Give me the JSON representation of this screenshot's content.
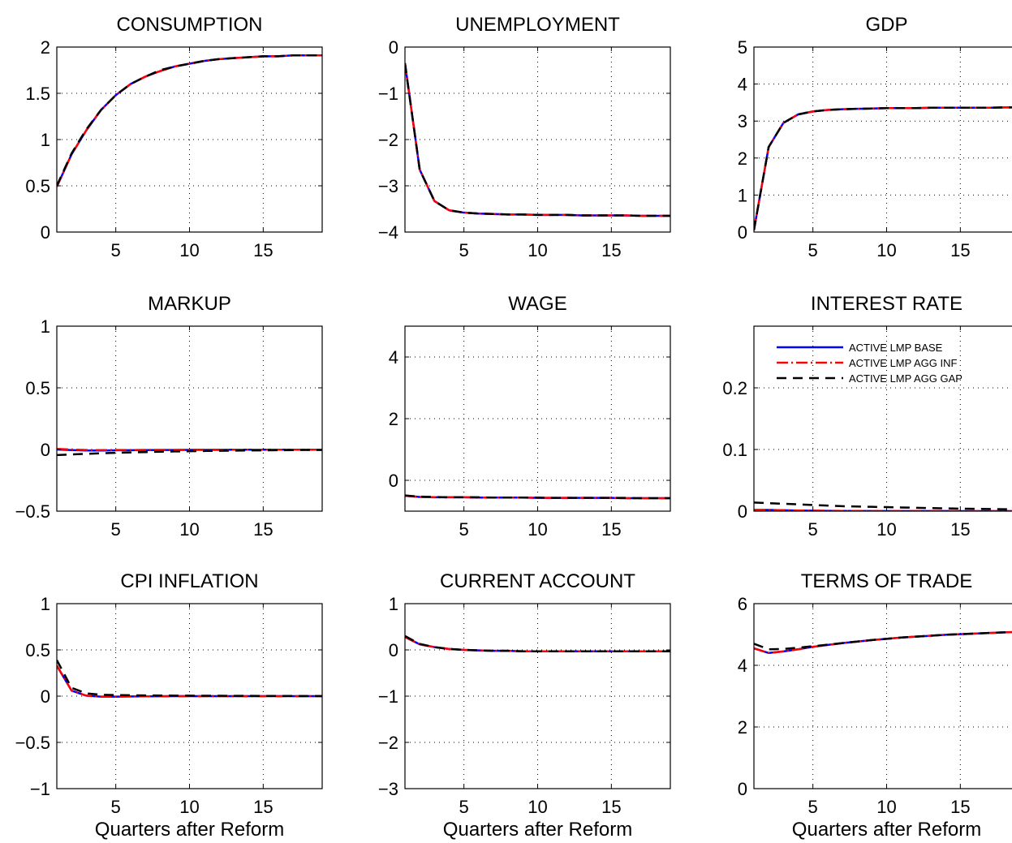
{
  "legend": {
    "entries": [
      {
        "label": "ACTIVE LMP BASE",
        "color": "#0000ff",
        "dash": "solid"
      },
      {
        "label": "ACTIVE LMP AGG INF",
        "color": "#ff0000",
        "dash": "dashdot"
      },
      {
        "label": "ACTIVE LMP AGG GAP",
        "color": "#000000",
        "dash": "dashed"
      }
    ],
    "placement": "top-left of INTEREST RATE panel"
  },
  "colors": {
    "base": "#0000ff",
    "agg_inf": "#ff0000",
    "agg_gap": "#000000",
    "grid": "#000000"
  },
  "chart_data": [
    {
      "type": "line",
      "title": "CONSUMPTION",
      "xlabel": "",
      "ylabel": "",
      "xlim": [
        1,
        19
      ],
      "ylim": [
        0,
        2
      ],
      "xticks": [
        5,
        10,
        15
      ],
      "xtick_labels": [
        "5",
        "10",
        "15"
      ],
      "yticks": [
        0,
        0.5,
        1,
        1.5,
        2
      ],
      "ytick_labels": [
        "0",
        "0.5",
        "1",
        "1.5",
        "2"
      ],
      "grid": true,
      "x": [
        1,
        2,
        3,
        4,
        5,
        6,
        7,
        8,
        9,
        10,
        11,
        12,
        13,
        14,
        15,
        16,
        17,
        18,
        19
      ],
      "series": [
        {
          "name": "ACTIVE LMP BASE",
          "values": [
            0.49,
            0.84,
            1.1,
            1.32,
            1.48,
            1.6,
            1.68,
            1.74,
            1.79,
            1.82,
            1.85,
            1.87,
            1.88,
            1.89,
            1.9,
            1.9,
            1.91,
            1.91,
            1.91
          ]
        },
        {
          "name": "ACTIVE LMP AGG INF",
          "values": [
            0.49,
            0.84,
            1.1,
            1.32,
            1.48,
            1.6,
            1.68,
            1.74,
            1.79,
            1.82,
            1.85,
            1.87,
            1.88,
            1.89,
            1.9,
            1.9,
            1.91,
            1.91,
            1.91
          ]
        },
        {
          "name": "ACTIVE LMP AGG GAP",
          "values": [
            0.5,
            0.85,
            1.11,
            1.32,
            1.48,
            1.6,
            1.68,
            1.75,
            1.79,
            1.82,
            1.85,
            1.87,
            1.88,
            1.89,
            1.9,
            1.9,
            1.91,
            1.91,
            1.91
          ]
        }
      ]
    },
    {
      "type": "line",
      "title": "UNEMPLOYMENT",
      "xlabel": "",
      "ylabel": "",
      "xlim": [
        1,
        19
      ],
      "ylim": [
        -4,
        0
      ],
      "xticks": [
        5,
        10,
        15
      ],
      "xtick_labels": [
        "5",
        "10",
        "15"
      ],
      "yticks": [
        -4,
        -3,
        -2,
        -1,
        0
      ],
      "ytick_labels": [
        "−4",
        "−3",
        "−2",
        "−1",
        "0"
      ],
      "grid": true,
      "x": [
        1,
        2,
        3,
        4,
        5,
        6,
        7,
        8,
        9,
        10,
        11,
        12,
        13,
        14,
        15,
        16,
        17,
        18,
        19
      ],
      "series": [
        {
          "name": "ACTIVE LMP BASE",
          "values": [
            -0.35,
            -2.65,
            -3.33,
            -3.53,
            -3.58,
            -3.6,
            -3.61,
            -3.62,
            -3.62,
            -3.63,
            -3.63,
            -3.63,
            -3.64,
            -3.64,
            -3.64,
            -3.64,
            -3.65,
            -3.65,
            -3.65
          ]
        },
        {
          "name": "ACTIVE LMP AGG INF",
          "values": [
            -0.35,
            -2.65,
            -3.33,
            -3.53,
            -3.58,
            -3.6,
            -3.61,
            -3.62,
            -3.62,
            -3.63,
            -3.63,
            -3.63,
            -3.64,
            -3.64,
            -3.64,
            -3.64,
            -3.65,
            -3.65,
            -3.65
          ]
        },
        {
          "name": "ACTIVE LMP AGG GAP",
          "values": [
            -0.35,
            -2.65,
            -3.33,
            -3.53,
            -3.58,
            -3.6,
            -3.61,
            -3.62,
            -3.62,
            -3.63,
            -3.63,
            -3.63,
            -3.64,
            -3.64,
            -3.64,
            -3.64,
            -3.65,
            -3.65,
            -3.65
          ]
        }
      ]
    },
    {
      "type": "line",
      "title": "GDP",
      "xlabel": "",
      "ylabel": "",
      "xlim": [
        1,
        19
      ],
      "ylim": [
        0,
        5
      ],
      "xticks": [
        5,
        10,
        15
      ],
      "xtick_labels": [
        "5",
        "10",
        "15"
      ],
      "yticks": [
        0,
        1,
        2,
        3,
        4,
        5
      ],
      "ytick_labels": [
        "0",
        "1",
        "2",
        "3",
        "4",
        "5"
      ],
      "grid": true,
      "x": [
        1,
        2,
        3,
        4,
        5,
        6,
        7,
        8,
        9,
        10,
        11,
        12,
        13,
        14,
        15,
        16,
        17,
        18,
        19
      ],
      "series": [
        {
          "name": "ACTIVE LMP BASE",
          "values": [
            0.05,
            2.3,
            2.95,
            3.18,
            3.26,
            3.3,
            3.32,
            3.33,
            3.34,
            3.35,
            3.35,
            3.35,
            3.36,
            3.36,
            3.36,
            3.36,
            3.36,
            3.37,
            3.37
          ]
        },
        {
          "name": "ACTIVE LMP AGG INF",
          "values": [
            0.05,
            2.3,
            2.95,
            3.18,
            3.26,
            3.3,
            3.32,
            3.33,
            3.34,
            3.35,
            3.35,
            3.35,
            3.36,
            3.36,
            3.36,
            3.36,
            3.36,
            3.37,
            3.37
          ]
        },
        {
          "name": "ACTIVE LMP AGG GAP",
          "values": [
            0.05,
            2.3,
            2.95,
            3.18,
            3.26,
            3.3,
            3.32,
            3.33,
            3.34,
            3.35,
            3.35,
            3.35,
            3.36,
            3.36,
            3.36,
            3.36,
            3.36,
            3.37,
            3.37
          ]
        }
      ]
    },
    {
      "type": "line",
      "title": "MARKUP",
      "xlabel": "",
      "ylabel": "",
      "xlim": [
        1,
        19
      ],
      "ylim": [
        -0.5,
        1
      ],
      "xticks": [
        5,
        10,
        15
      ],
      "xtick_labels": [
        "5",
        "10",
        "15"
      ],
      "yticks": [
        -0.5,
        0,
        0.5,
        1
      ],
      "ytick_labels": [
        "−0.5",
        "0",
        "0.5",
        "1"
      ],
      "grid": true,
      "x": [
        1,
        2,
        3,
        4,
        5,
        6,
        7,
        8,
        9,
        10,
        11,
        12,
        13,
        14,
        15,
        16,
        17,
        18,
        19
      ],
      "series": [
        {
          "name": "ACTIVE LMP BASE",
          "values": [
            0.0,
            -0.005,
            -0.008,
            -0.008,
            -0.007,
            -0.006,
            -0.005,
            -0.004,
            -0.004,
            -0.003,
            -0.003,
            -0.003,
            -0.002,
            -0.002,
            -0.002,
            -0.002,
            -0.002,
            -0.002,
            -0.002
          ]
        },
        {
          "name": "ACTIVE LMP AGG INF",
          "values": [
            0.005,
            0.0,
            -0.004,
            -0.005,
            -0.004,
            -0.004,
            -0.003,
            -0.003,
            -0.003,
            -0.002,
            -0.002,
            -0.002,
            -0.002,
            -0.002,
            -0.002,
            -0.002,
            -0.002,
            -0.002,
            -0.002
          ]
        },
        {
          "name": "ACTIVE LMP AGG GAP",
          "values": [
            -0.045,
            -0.04,
            -0.035,
            -0.031,
            -0.027,
            -0.024,
            -0.021,
            -0.018,
            -0.016,
            -0.014,
            -0.012,
            -0.011,
            -0.009,
            -0.008,
            -0.007,
            -0.006,
            -0.005,
            -0.004,
            -0.004
          ]
        }
      ]
    },
    {
      "type": "line",
      "title": "WAGE",
      "xlabel": "",
      "ylabel": "",
      "xlim": [
        1,
        19
      ],
      "ylim": [
        -1,
        5
      ],
      "xticks": [
        5,
        10,
        15
      ],
      "xtick_labels": [
        "5",
        "10",
        "15"
      ],
      "yticks": [
        0,
        2,
        4
      ],
      "ytick_labels": [
        "0",
        "2",
        "4"
      ],
      "grid": true,
      "x": [
        1,
        2,
        3,
        4,
        5,
        6,
        7,
        8,
        9,
        10,
        11,
        12,
        13,
        14,
        15,
        16,
        17,
        18,
        19
      ],
      "series": [
        {
          "name": "ACTIVE LMP BASE",
          "values": [
            -0.5,
            -0.54,
            -0.55,
            -0.55,
            -0.55,
            -0.56,
            -0.56,
            -0.56,
            -0.56,
            -0.57,
            -0.57,
            -0.57,
            -0.57,
            -0.57,
            -0.57,
            -0.58,
            -0.58,
            -0.58,
            -0.58
          ]
        },
        {
          "name": "ACTIVE LMP AGG INF",
          "values": [
            -0.5,
            -0.54,
            -0.55,
            -0.55,
            -0.55,
            -0.56,
            -0.56,
            -0.56,
            -0.56,
            -0.57,
            -0.57,
            -0.57,
            -0.57,
            -0.57,
            -0.57,
            -0.58,
            -0.58,
            -0.58,
            -0.58
          ]
        },
        {
          "name": "ACTIVE LMP AGG GAP",
          "values": [
            -0.49,
            -0.53,
            -0.54,
            -0.55,
            -0.55,
            -0.55,
            -0.56,
            -0.56,
            -0.56,
            -0.56,
            -0.57,
            -0.57,
            -0.57,
            -0.57,
            -0.57,
            -0.57,
            -0.58,
            -0.58,
            -0.58
          ]
        }
      ]
    },
    {
      "type": "line",
      "title": "INTEREST RATE",
      "xlabel": "",
      "ylabel": "",
      "xlim": [
        1,
        19
      ],
      "ylim": [
        0,
        0.3
      ],
      "xticks": [
        5,
        10,
        15
      ],
      "xtick_labels": [
        "5",
        "10",
        "15"
      ],
      "yticks": [
        0,
        0.1,
        0.2
      ],
      "ytick_labels": [
        "0",
        "0.1",
        "0.2"
      ],
      "grid": true,
      "x": [
        1,
        2,
        3,
        4,
        5,
        6,
        7,
        8,
        9,
        10,
        11,
        12,
        13,
        14,
        15,
        16,
        17,
        18,
        19
      ],
      "series": [
        {
          "name": "ACTIVE LMP BASE",
          "values": [
            0.002,
            0.002,
            0.0015,
            0.001,
            0.0008,
            0.0005,
            0.0004,
            0.0003,
            0.0002,
            0.0002,
            0.0001,
            0.0001,
            0.0001,
            0.0001,
            0.0,
            0.0,
            0.0,
            0.0,
            0.0
          ]
        },
        {
          "name": "ACTIVE LMP AGG INF",
          "values": [
            0.002,
            0.002,
            0.0015,
            0.001,
            0.0008,
            0.0005,
            0.0004,
            0.0003,
            0.0002,
            0.0002,
            0.0001,
            0.0001,
            0.0001,
            0.0001,
            0.0,
            0.0,
            0.0,
            0.0,
            0.0
          ]
        },
        {
          "name": "ACTIVE LMP AGG GAP",
          "values": [
            0.014,
            0.013,
            0.012,
            0.011,
            0.01,
            0.009,
            0.008,
            0.0075,
            0.007,
            0.0065,
            0.006,
            0.0055,
            0.005,
            0.0045,
            0.004,
            0.0038,
            0.0035,
            0.0032,
            0.003
          ]
        }
      ]
    },
    {
      "type": "line",
      "title": "CPI INFLATION",
      "xlabel": "Quarters after Reform",
      "ylabel": "",
      "xlim": [
        1,
        19
      ],
      "ylim": [
        -1,
        1
      ],
      "xticks": [
        5,
        10,
        15
      ],
      "xtick_labels": [
        "5",
        "10",
        "15"
      ],
      "yticks": [
        -1,
        -0.5,
        0,
        0.5,
        1
      ],
      "ytick_labels": [
        "−1",
        "−0.5",
        "0",
        "0.5",
        "1"
      ],
      "grid": true,
      "x": [
        1,
        2,
        3,
        4,
        5,
        6,
        7,
        8,
        9,
        10,
        11,
        12,
        13,
        14,
        15,
        16,
        17,
        18,
        19
      ],
      "series": [
        {
          "name": "ACTIVE LMP BASE",
          "values": [
            0.33,
            0.06,
            0.005,
            -0.005,
            -0.005,
            -0.003,
            -0.002,
            -0.001,
            0.0,
            0.0,
            0.0,
            0.0,
            0.0,
            0.0,
            0.0,
            0.0,
            0.0,
            0.0,
            0.0
          ]
        },
        {
          "name": "ACTIVE LMP AGG INF",
          "values": [
            0.33,
            0.06,
            0.005,
            -0.005,
            -0.005,
            -0.003,
            -0.002,
            -0.001,
            0.0,
            0.0,
            0.0,
            0.0,
            0.0,
            0.0,
            0.0,
            0.0,
            0.0,
            0.0,
            0.0
          ]
        },
        {
          "name": "ACTIVE LMP AGG GAP",
          "values": [
            0.39,
            0.09,
            0.03,
            0.015,
            0.012,
            0.01,
            0.008,
            0.007,
            0.006,
            0.005,
            0.004,
            0.004,
            0.003,
            0.003,
            0.002,
            0.002,
            0.002,
            0.001,
            0.001
          ]
        }
      ]
    },
    {
      "type": "line",
      "title": "CURRENT ACCOUNT",
      "xlabel": "Quarters after Reform",
      "ylabel": "",
      "xlim": [
        1,
        19
      ],
      "ylim": [
        -3,
        1
      ],
      "xticks": [
        5,
        10,
        15
      ],
      "xtick_labels": [
        "5",
        "10",
        "15"
      ],
      "yticks": [
        -3,
        -2,
        -1,
        0,
        1
      ],
      "ytick_labels": [
        "−3",
        "−2",
        "−1",
        "0",
        "1"
      ],
      "grid": true,
      "x": [
        1,
        2,
        3,
        4,
        5,
        6,
        7,
        8,
        9,
        10,
        11,
        12,
        13,
        14,
        15,
        16,
        17,
        18,
        19
      ],
      "series": [
        {
          "name": "ACTIVE LMP BASE",
          "values": [
            0.28,
            0.12,
            0.06,
            0.02,
            0.0,
            -0.01,
            -0.02,
            -0.02,
            -0.03,
            -0.03,
            -0.03,
            -0.03,
            -0.03,
            -0.03,
            -0.03,
            -0.03,
            -0.03,
            -0.03,
            -0.03
          ]
        },
        {
          "name": "ACTIVE LMP AGG INF",
          "values": [
            0.28,
            0.12,
            0.06,
            0.02,
            0.0,
            -0.01,
            -0.02,
            -0.02,
            -0.03,
            -0.03,
            -0.03,
            -0.03,
            -0.03,
            -0.03,
            -0.03,
            -0.03,
            -0.03,
            -0.03,
            -0.03
          ]
        },
        {
          "name": "ACTIVE LMP AGG GAP",
          "values": [
            0.3,
            0.13,
            0.06,
            0.02,
            0.0,
            -0.01,
            -0.02,
            -0.02,
            -0.03,
            -0.03,
            -0.03,
            -0.03,
            -0.03,
            -0.03,
            -0.03,
            -0.03,
            -0.03,
            -0.03,
            -0.03
          ]
        }
      ]
    },
    {
      "type": "line",
      "title": "TERMS OF TRADE",
      "xlabel": "Quarters after Reform",
      "ylabel": "",
      "xlim": [
        1,
        19
      ],
      "ylim": [
        0,
        6
      ],
      "xticks": [
        5,
        10,
        15
      ],
      "xtick_labels": [
        "5",
        "10",
        "15"
      ],
      "yticks": [
        0,
        2,
        4,
        6
      ],
      "ytick_labels": [
        "0",
        "2",
        "4",
        "6"
      ],
      "grid": true,
      "x": [
        1,
        2,
        3,
        4,
        5,
        6,
        7,
        8,
        9,
        10,
        11,
        12,
        13,
        14,
        15,
        16,
        17,
        18,
        19
      ],
      "series": [
        {
          "name": "ACTIVE LMP BASE",
          "values": [
            4.55,
            4.4,
            4.45,
            4.52,
            4.6,
            4.66,
            4.72,
            4.77,
            4.82,
            4.86,
            4.9,
            4.93,
            4.96,
            4.99,
            5.01,
            5.03,
            5.05,
            5.07,
            5.08
          ]
        },
        {
          "name": "ACTIVE LMP AGG INF",
          "values": [
            4.55,
            4.4,
            4.45,
            4.52,
            4.6,
            4.66,
            4.72,
            4.77,
            4.82,
            4.86,
            4.9,
            4.93,
            4.96,
            4.99,
            5.01,
            5.03,
            5.05,
            5.07,
            5.08
          ]
        },
        {
          "name": "ACTIVE LMP AGG GAP",
          "values": [
            4.7,
            4.52,
            4.53,
            4.57,
            4.62,
            4.67,
            4.72,
            4.77,
            4.82,
            4.86,
            4.9,
            4.93,
            4.96,
            4.99,
            5.01,
            5.03,
            5.05,
            5.07,
            5.08
          ]
        }
      ]
    }
  ]
}
